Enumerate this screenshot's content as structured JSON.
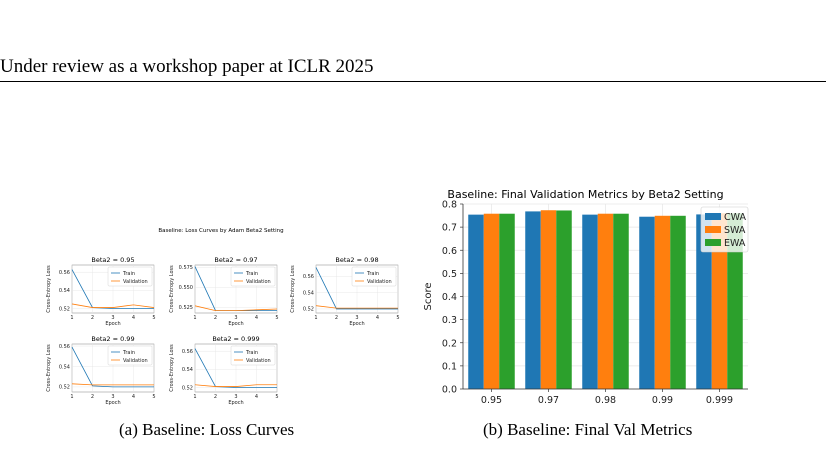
{
  "header": {
    "text": "Under review as a workshop paper at ICLR 2025"
  },
  "figure": {
    "caption_a": "(a) Baseline: Loss Curves",
    "caption_b": "(b) Baseline: Final Val Metrics"
  },
  "chart_data": [
    {
      "type": "line",
      "title": "Baseline: Loss Curves by Adam Beta2 Setting",
      "panels": [
        {
          "title": "Beta2 = 0.95",
          "xlabel": "Epoch",
          "ylabel": "Cross-Entropy Loss",
          "x": [
            1,
            2,
            3,
            4,
            5
          ],
          "xticks": [
            "1",
            "2",
            "3",
            "4",
            "5"
          ],
          "ylim": [
            0.515,
            0.568
          ],
          "yticks": [
            0.52,
            0.54,
            0.56
          ],
          "ytick_labels": [
            "0.52",
            "0.54",
            "0.56"
          ],
          "series": [
            {
              "name": "Train",
              "color": "#1f77b4",
              "values": [
                0.563,
                0.521,
                0.52,
                0.52,
                0.52
              ]
            },
            {
              "name": "Validation",
              "color": "#ff7f0e",
              "values": [
                0.525,
                0.521,
                0.521,
                0.524,
                0.521
              ]
            }
          ]
        },
        {
          "title": "Beta2 = 0.97",
          "xlabel": "Epoch",
          "ylabel": "Cross-Entropy Loss",
          "x": [
            1,
            2,
            3,
            4,
            5
          ],
          "xticks": [
            "1",
            "2",
            "3",
            "4",
            "5"
          ],
          "ylim": [
            0.518,
            0.578
          ],
          "yticks": [
            0.525,
            0.55,
            0.575
          ],
          "ytick_labels": [
            "0.525",
            "0.550",
            "0.575"
          ],
          "series": [
            {
              "name": "Train",
              "color": "#1f77b4",
              "values": [
                0.576,
                0.521,
                0.521,
                0.521,
                0.521
              ]
            },
            {
              "name": "Validation",
              "color": "#ff7f0e",
              "values": [
                0.527,
                0.521,
                0.521,
                0.522,
                0.523
              ]
            }
          ]
        },
        {
          "title": "Beta2 = 0.98",
          "xlabel": "Epoch",
          "ylabel": "Cross-Entropy Loss",
          "x": [
            1,
            2,
            3,
            4,
            5
          ],
          "xticks": [
            "1",
            "2",
            "3",
            "4",
            "5"
          ],
          "ylim": [
            0.515,
            0.574
          ],
          "yticks": [
            0.52,
            0.54,
            0.56
          ],
          "ytick_labels": [
            "0.52",
            "0.54",
            "0.56"
          ],
          "series": [
            {
              "name": "Train",
              "color": "#1f77b4",
              "values": [
                0.571,
                0.52,
                0.52,
                0.52,
                0.52
              ]
            },
            {
              "name": "Validation",
              "color": "#ff7f0e",
              "values": [
                0.524,
                0.521,
                0.521,
                0.521,
                0.521
              ]
            }
          ]
        },
        {
          "title": "Beta2 = 0.99",
          "xlabel": "Epoch",
          "ylabel": "Cross-Entropy Loss",
          "x": [
            1,
            2,
            3,
            4,
            5
          ],
          "xticks": [
            "1",
            "2",
            "3",
            "4",
            "5"
          ],
          "ylim": [
            0.515,
            0.562
          ],
          "yticks": [
            0.52,
            0.54,
            0.56
          ],
          "ytick_labels": [
            "0.52",
            "0.54",
            "0.56"
          ],
          "series": [
            {
              "name": "Train",
              "color": "#1f77b4",
              "values": [
                0.559,
                0.521,
                0.52,
                0.52,
                0.52
              ]
            },
            {
              "name": "Validation",
              "color": "#ff7f0e",
              "values": [
                0.523,
                0.522,
                0.522,
                0.522,
                0.522
              ]
            }
          ]
        },
        {
          "title": "Beta2 = 0.999",
          "xlabel": "Epoch",
          "ylabel": "Cross-Entropy Loss",
          "x": [
            1,
            2,
            3,
            4,
            5
          ],
          "xticks": [
            "1",
            "2",
            "3",
            "4",
            "5"
          ],
          "ylim": [
            0.515,
            0.568
          ],
          "yticks": [
            0.52,
            0.54,
            0.56
          ],
          "ytick_labels": [
            "0.52",
            "0.54",
            "0.56"
          ],
          "series": [
            {
              "name": "Train",
              "color": "#1f77b4",
              "values": [
                0.563,
                0.521,
                0.52,
                0.52,
                0.52
              ]
            },
            {
              "name": "Validation",
              "color": "#ff7f0e",
              "values": [
                0.523,
                0.521,
                0.521,
                0.523,
                0.523
              ]
            }
          ]
        }
      ]
    },
    {
      "type": "bar",
      "title": "Baseline: Final Validation Metrics by Beta2 Setting",
      "xlabel": "",
      "ylabel": "Score",
      "categories": [
        "0.95",
        "0.97",
        "0.98",
        "0.99",
        "0.999"
      ],
      "ylim": [
        0,
        0.8
      ],
      "yticks": [
        0.0,
        0.1,
        0.2,
        0.3,
        0.4,
        0.5,
        0.6,
        0.7,
        0.8
      ],
      "ytick_labels": [
        "0.0",
        "0.1",
        "0.2",
        "0.3",
        "0.4",
        "0.5",
        "0.6",
        "0.7",
        "0.8"
      ],
      "legend": "top-right",
      "series": [
        {
          "name": "CWA",
          "color": "#1f77b4",
          "values": [
            0.754,
            0.768,
            0.754,
            0.745,
            0.755
          ]
        },
        {
          "name": "SWA",
          "color": "#ff7f0e",
          "values": [
            0.758,
            0.773,
            0.758,
            0.749,
            0.76
          ]
        },
        {
          "name": "EWA",
          "color": "#2ca02c",
          "values": [
            0.758,
            0.772,
            0.758,
            0.749,
            0.76
          ]
        }
      ]
    }
  ]
}
